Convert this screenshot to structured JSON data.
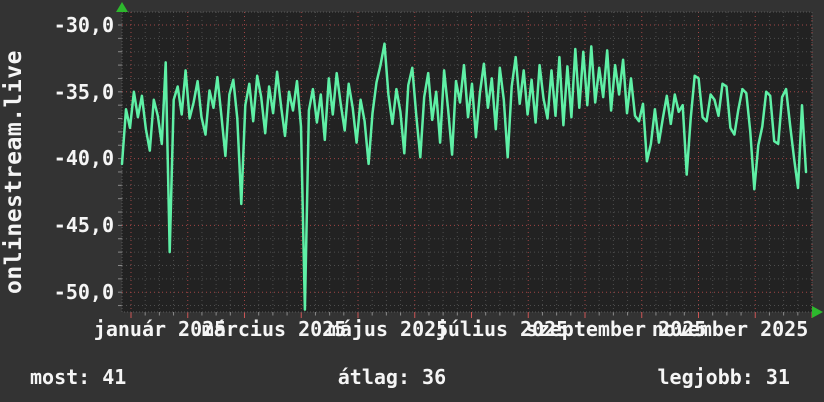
{
  "brand": "onlinestream.live",
  "stats": {
    "most_label": "most: ",
    "most_value": "41",
    "atlag_label": "átlag: ",
    "atlag_value": "36",
    "legjobb_label": "legjobb: ",
    "legjobb_value": "31"
  },
  "chart_data": {
    "type": "line",
    "title": "",
    "xlabel": "",
    "ylabel": "",
    "y_tick_labels": [
      "-30,0",
      "-35,0",
      "-40,0",
      "-45,0",
      "-50,0"
    ],
    "x_tick_labels": [
      "január 2025",
      "március 2025",
      "május 2025",
      "július 2025",
      "szeptember 2025",
      "november 2025"
    ],
    "ylim": [
      -51.5,
      -29.0
    ],
    "x_range": [
      "2025-01",
      "2025-12"
    ],
    "grid": "dotted; minor = 1 unit / week, major (red) = 5 units / month",
    "legend_position": "none",
    "current": -41,
    "average": -36,
    "best": -31,
    "values": [
      -40.4,
      -36.3,
      -37.7,
      -35.0,
      -36.9,
      -35.3,
      -37.8,
      -39.4,
      -35.6,
      -36.8,
      -38.9,
      -32.8,
      -47.0,
      -35.6,
      -34.6,
      -36.7,
      -33.4,
      -37.0,
      -35.8,
      -34.2,
      -36.9,
      -38.2,
      -34.9,
      -36.2,
      -33.9,
      -36.8,
      -39.8,
      -35.2,
      -34.1,
      -37.0,
      -43.4,
      -36.0,
      -34.4,
      -37.2,
      -33.8,
      -35.4,
      -38.1,
      -34.6,
      -36.6,
      -33.5,
      -36.1,
      -38.3,
      -35.0,
      -36.4,
      -34.2,
      -37.6,
      -51.3,
      -36.4,
      -34.8,
      -37.3,
      -35.2,
      -38.6,
      -34.0,
      -36.7,
      -33.6,
      -35.9,
      -37.9,
      -34.4,
      -36.2,
      -38.8,
      -35.6,
      -37.2,
      -40.4,
      -36.6,
      -34.3,
      -33.0,
      -31.4,
      -35.2,
      -37.4,
      -34.8,
      -36.5,
      -39.6,
      -34.5,
      -33.2,
      -36.8,
      -39.9,
      -35.4,
      -33.6,
      -37.1,
      -35.0,
      -38.8,
      -33.4,
      -36.3,
      -39.7,
      -34.2,
      -35.8,
      -33.0,
      -36.9,
      -34.4,
      -38.4,
      -35.1,
      -32.9,
      -36.2,
      -34.0,
      -37.8,
      -33.2,
      -35.6,
      -39.9,
      -34.6,
      -32.4,
      -35.9,
      -33.4,
      -36.7,
      -34.1,
      -37.3,
      -33.0,
      -35.5,
      -37.0,
      -33.4,
      -36.8,
      -32.4,
      -37.5,
      -33.1,
      -36.9,
      -31.8,
      -36.2,
      -32.0,
      -36.0,
      -31.6,
      -35.8,
      -33.2,
      -35.4,
      -31.9,
      -36.4,
      -33.0,
      -35.2,
      -32.6,
      -36.6,
      -34.0,
      -36.8,
      -37.2,
      -35.9,
      -40.2,
      -38.9,
      -36.3,
      -38.8,
      -37.0,
      -35.3,
      -37.4,
      -35.2,
      -36.5,
      -36.0,
      -41.2,
      -37.0,
      -33.8,
      -34.0,
      -36.9,
      -37.2,
      -35.2,
      -35.6,
      -36.8,
      -34.4,
      -34.6,
      -37.7,
      -38.2,
      -36.3,
      -34.8,
      -35.1,
      -38.0,
      -42.3,
      -39.0,
      -37.6,
      -35.0,
      -35.3,
      -38.7,
      -38.9,
      -35.4,
      -34.8,
      -37.5,
      -40.0,
      -42.2,
      -36.0,
      -41.0
    ],
    "colors": {
      "outer_bg": "#333333",
      "plot_bg": "#222222",
      "grid_minor": "#4d4d4d",
      "grid_major": "#a04545",
      "frame": "#5a5a5a",
      "tick_minor": "#8a8a8a",
      "tick_major": "#cc5555",
      "line": "#5ff0a6",
      "arrow": "#2db82d",
      "text": "#f5f5f5"
    }
  }
}
